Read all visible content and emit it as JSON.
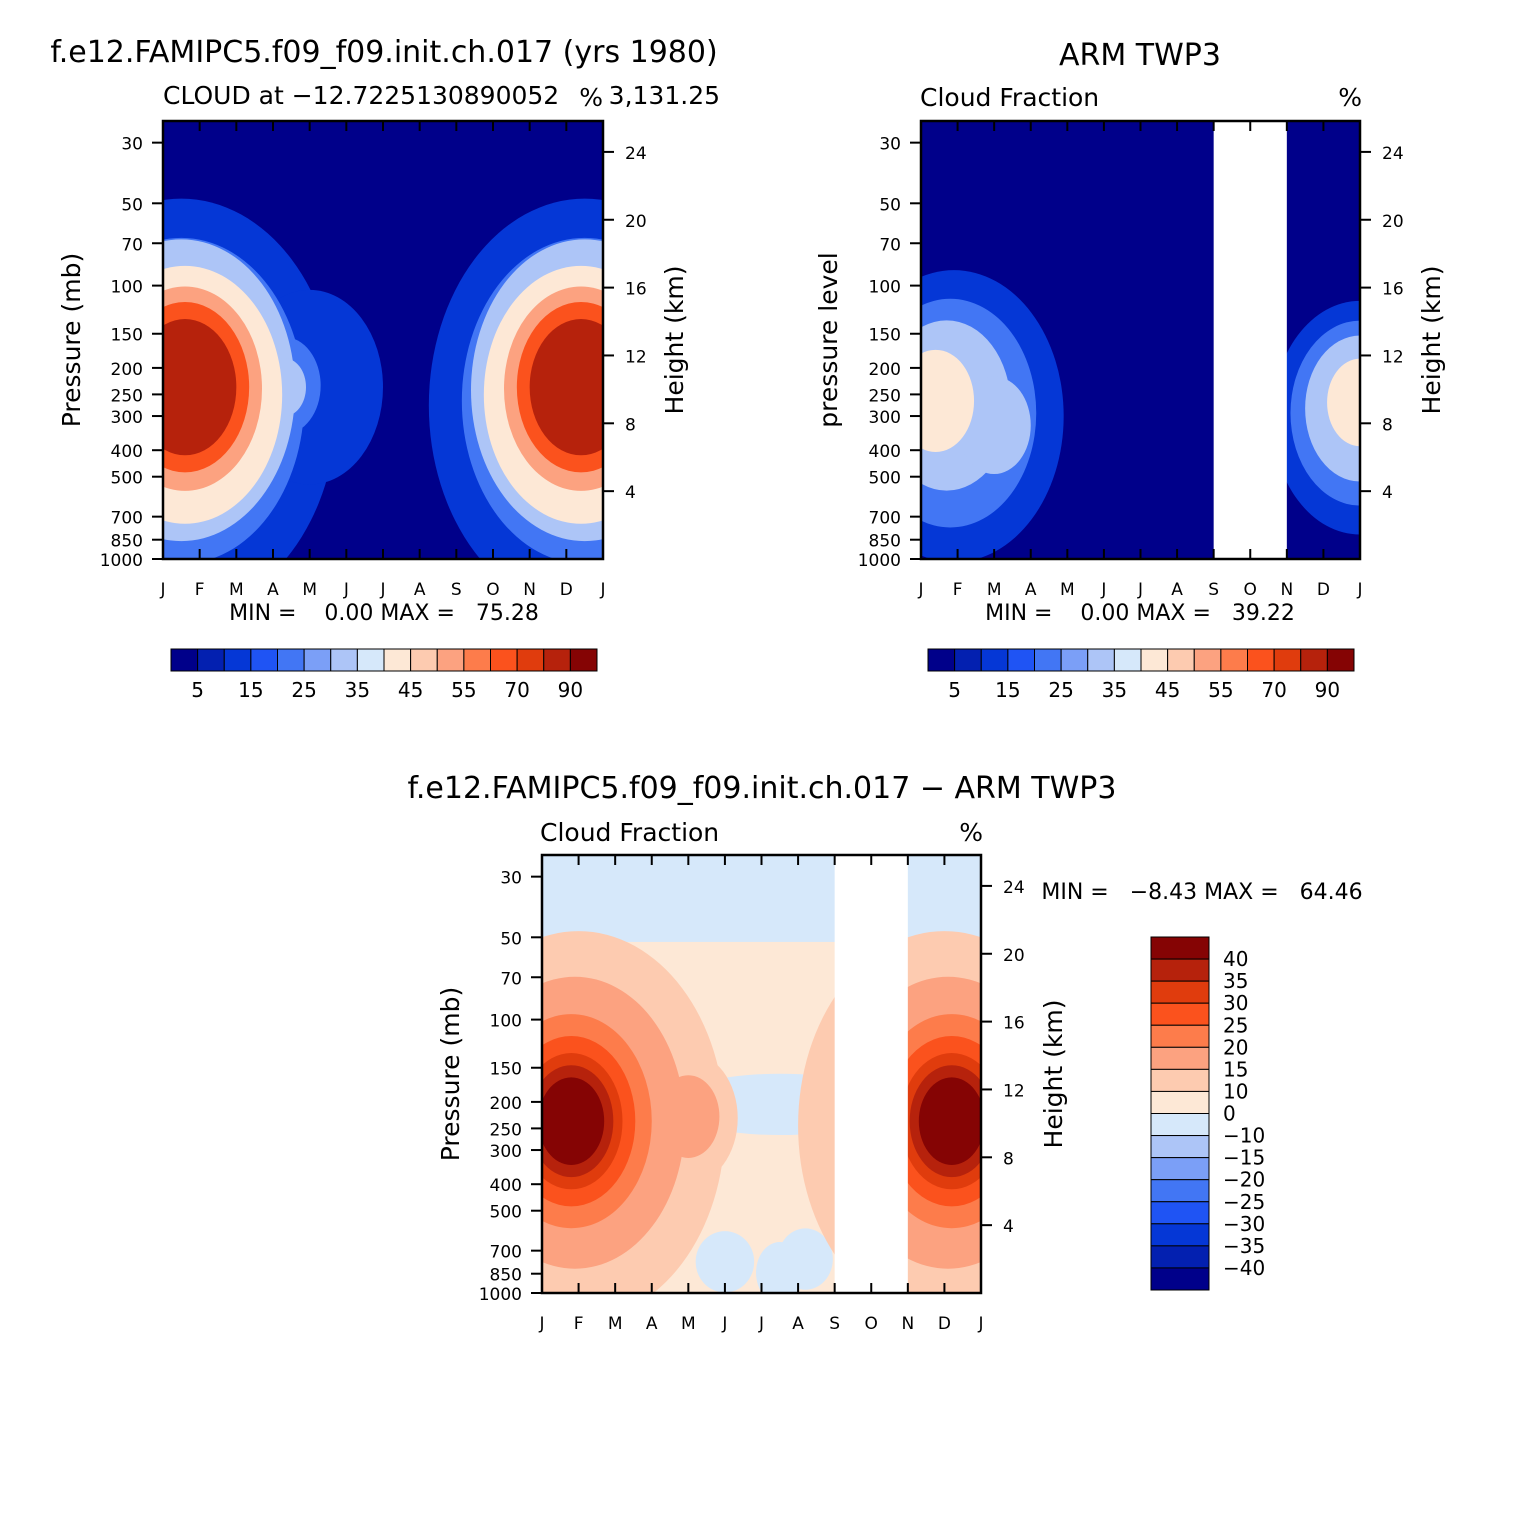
{
  "chart_data": [
    {
      "type": "heatmap",
      "id": "model",
      "title": "f.e12.FAMIPC5.f09_f09.init.ch.017 (yrs 1980)",
      "subtitle_left": "CLOUD at −12.7225130890052",
      "subtitle_right": "3,131.25",
      "units": "%",
      "ylabel": "Pressure (mb)",
      "ylabel_right": "Height (km)",
      "x_ticks": [
        "J",
        "F",
        "M",
        "A",
        "M",
        "J",
        "J",
        "A",
        "S",
        "O",
        "N",
        "D",
        "J"
      ],
      "y_ticks": [
        30,
        50,
        70,
        100,
        150,
        200,
        250,
        300,
        400,
        500,
        700,
        850,
        1000
      ],
      "y_range_mb": [
        25,
        1000
      ],
      "height_ticks_km": [
        24,
        20,
        16,
        12,
        8,
        4
      ],
      "stats_text": "MIN =    0.00 MAX =   75.28",
      "min": 0.0,
      "max": 75.28,
      "missing_months": [],
      "colorbar": {
        "orientation": "horizontal",
        "labels": [
          "5",
          "15",
          "25",
          "35",
          "45",
          "55",
          "70",
          "90"
        ],
        "colors": [
          "#00008a",
          "#0320b0",
          "#0537d6",
          "#1f54f4",
          "#4276f4",
          "#7b9ff7",
          "#adc5f7",
          "#d6e8fa",
          "#fde8d6",
          "#fdcbb0",
          "#fca280",
          "#fd7c4b",
          "#fb521d",
          "#e03c0d",
          "#b6220c",
          "#850404"
        ]
      },
      "contours": [
        {
          "level": 5,
          "blobs": [
            [
              0.5,
              5.5,
              8.5
            ],
            [
              11.5,
              5.5,
              8.5
            ],
            [
              4.0,
              4.3,
              4.0
            ]
          ]
        },
        {
          "level": 15,
          "blobs": [
            [
              0.5,
              5.2,
              6.7
            ],
            [
              11.5,
              5.2,
              6.7
            ],
            [
              3.3,
              4.2,
              2.0
            ]
          ]
        },
        {
          "level": 25,
          "blobs": [
            [
              0.5,
              4.5,
              6.2
            ],
            [
              11.5,
              4.5,
              6.2
            ],
            [
              3.3,
              4.3,
              1.2
            ]
          ]
        },
        {
          "level": 35,
          "blobs": [
            [
              0.6,
              4.8,
              5.3
            ],
            [
              11.4,
              4.8,
              5.3
            ]
          ]
        },
        {
          "level": 45,
          "blobs": [
            [
              0.6,
              4.4,
              4.2
            ],
            [
              11.4,
              4.4,
              4.2
            ]
          ]
        },
        {
          "level": 55,
          "blobs": [
            [
              0.6,
              4.3,
              3.5
            ],
            [
              11.4,
              4.3,
              3.5
            ]
          ]
        },
        {
          "level": 70,
          "blobs": [
            [
              0.6,
              4.3,
              2.8
            ],
            [
              11.4,
              4.3,
              2.8
            ]
          ]
        }
      ]
    },
    {
      "type": "heatmap",
      "id": "obs",
      "title": "ARM TWP3",
      "subtitle_left": "Cloud Fraction",
      "units": "%",
      "ylabel": "pressure level",
      "ylabel_right": "Height (km)",
      "x_ticks": [
        "J",
        "F",
        "M",
        "A",
        "M",
        "J",
        "J",
        "A",
        "S",
        "O",
        "N",
        "D",
        "J"
      ],
      "y_ticks": [
        30,
        50,
        70,
        100,
        150,
        200,
        250,
        300,
        400,
        500,
        700,
        850,
        1000
      ],
      "y_range_mb": [
        25,
        1000
      ],
      "height_ticks_km": [
        24,
        20,
        16,
        12,
        8,
        4
      ],
      "stats_text": "MIN =    0.00 MAX =   39.22",
      "min": 0.0,
      "max": 39.22,
      "missing_months": [
        8,
        10
      ],
      "colorbar": {
        "orientation": "horizontal",
        "labels": [
          "5",
          "15",
          "25",
          "35",
          "45",
          "55",
          "70",
          "90"
        ],
        "colors": [
          "#00008a",
          "#0320b0",
          "#0537d6",
          "#1f54f4",
          "#4276f4",
          "#7b9ff7",
          "#adc5f7",
          "#d6e8fa",
          "#fde8d6",
          "#fdcbb0",
          "#fca280",
          "#fd7c4b",
          "#fb521d",
          "#e03c0d",
          "#b6220c",
          "#850404"
        ]
      },
      "contours": [
        {
          "level": 5,
          "blobs": [
            [
              0.9,
              6.2,
              6.0
            ],
            [
              12.0,
              6.3,
              4.8
            ]
          ]
        },
        {
          "level": 15,
          "blobs": [
            [
              0.8,
              6.0,
              4.7
            ],
            [
              12.0,
              6.0,
              3.8
            ]
          ]
        },
        {
          "level": 25,
          "blobs": [
            [
              0.7,
              5.5,
              3.5
            ],
            [
              12.0,
              5.7,
              3.0
            ],
            [
              2.0,
              6.8,
              2.0
            ]
          ]
        },
        {
          "level": 35,
          "blobs": [
            [
              0.4,
              5.2,
              2.1
            ],
            [
              12.0,
              5.3,
              1.8
            ]
          ]
        }
      ]
    },
    {
      "type": "heatmap",
      "id": "diff",
      "title": "f.e12.FAMIPC5.f09_f09.init.ch.017 − ARM TWP3",
      "subtitle_left": "Cloud Fraction",
      "units": "%",
      "ylabel": "Pressure (mb)",
      "ylabel_right": "Height (km)",
      "x_ticks": [
        "J",
        "F",
        "M",
        "A",
        "M",
        "J",
        "J",
        "A",
        "S",
        "O",
        "N",
        "D",
        "J"
      ],
      "y_ticks": [
        30,
        50,
        70,
        100,
        150,
        200,
        250,
        300,
        400,
        500,
        700,
        850,
        1000
      ],
      "y_range_mb": [
        25,
        1000
      ],
      "height_ticks_km": [
        24,
        20,
        16,
        12,
        8,
        4
      ],
      "stats_text": "MIN =   −8.43 MAX =   64.46",
      "min": -8.43,
      "max": 64.46,
      "missing_months": [
        8,
        10
      ],
      "colorbar": {
        "orientation": "vertical",
        "labels": [
          "40",
          "35",
          "30",
          "25",
          "20",
          "15",
          "10",
          "0",
          "−10",
          "−15",
          "−20",
          "−25",
          "−30",
          "−35",
          "−40"
        ],
        "colors": [
          "#850404",
          "#b6220c",
          "#e03c0d",
          "#fb521d",
          "#fd7c4b",
          "#fca280",
          "#fdcbb0",
          "#fde8d6",
          "#d6e8fa",
          "#adc5f7",
          "#7b9ff7",
          "#4276f4",
          "#1f54f4",
          "#0537d6",
          "#0320b0",
          "#00008a"
        ]
      },
      "contours": [
        {
          "level": 10,
          "blobs": [
            [
              1.0,
              4.6,
              8.0
            ],
            [
              11.0,
              4.6,
              8.0
            ],
            [
              4.0,
              4.1,
              2.7
            ]
          ]
        },
        {
          "level": 15,
          "blobs": [
            [
              0.9,
              4.4,
              6.0
            ],
            [
              11.1,
              4.4,
              6.0
            ],
            [
              4.0,
              4.0,
              1.7
            ]
          ]
        },
        {
          "level": 20,
          "blobs": [
            [
              0.8,
              4.3,
              4.4
            ],
            [
              11.2,
              4.3,
              4.4
            ]
          ]
        },
        {
          "level": 25,
          "blobs": [
            [
              0.8,
              4.3,
              3.5
            ],
            [
              11.2,
              4.3,
              3.5
            ]
          ]
        },
        {
          "level": 30,
          "blobs": [
            [
              0.8,
              4.3,
              2.8
            ],
            [
              11.2,
              4.3,
              2.8
            ]
          ]
        },
        {
          "level": 35,
          "blobs": [
            [
              0.8,
              4.3,
              2.3
            ],
            [
              11.2,
              4.3,
              2.3
            ]
          ]
        },
        {
          "level": 40,
          "blobs": [
            [
              0.8,
              4.3,
              1.8
            ],
            [
              11.2,
              4.3,
              1.8
            ]
          ]
        }
      ],
      "negative_patches": [
        {
          "blobs": [
            [
              5.0,
              7.6,
              1.6
            ],
            [
              7.2,
              7.5,
              1.5
            ],
            [
              6.5,
              8.0,
              1.3
            ]
          ]
        },
        {
          "blobs": [
            [
              6.5,
              1.8,
              6.0
            ]
          ]
        }
      ]
    }
  ]
}
